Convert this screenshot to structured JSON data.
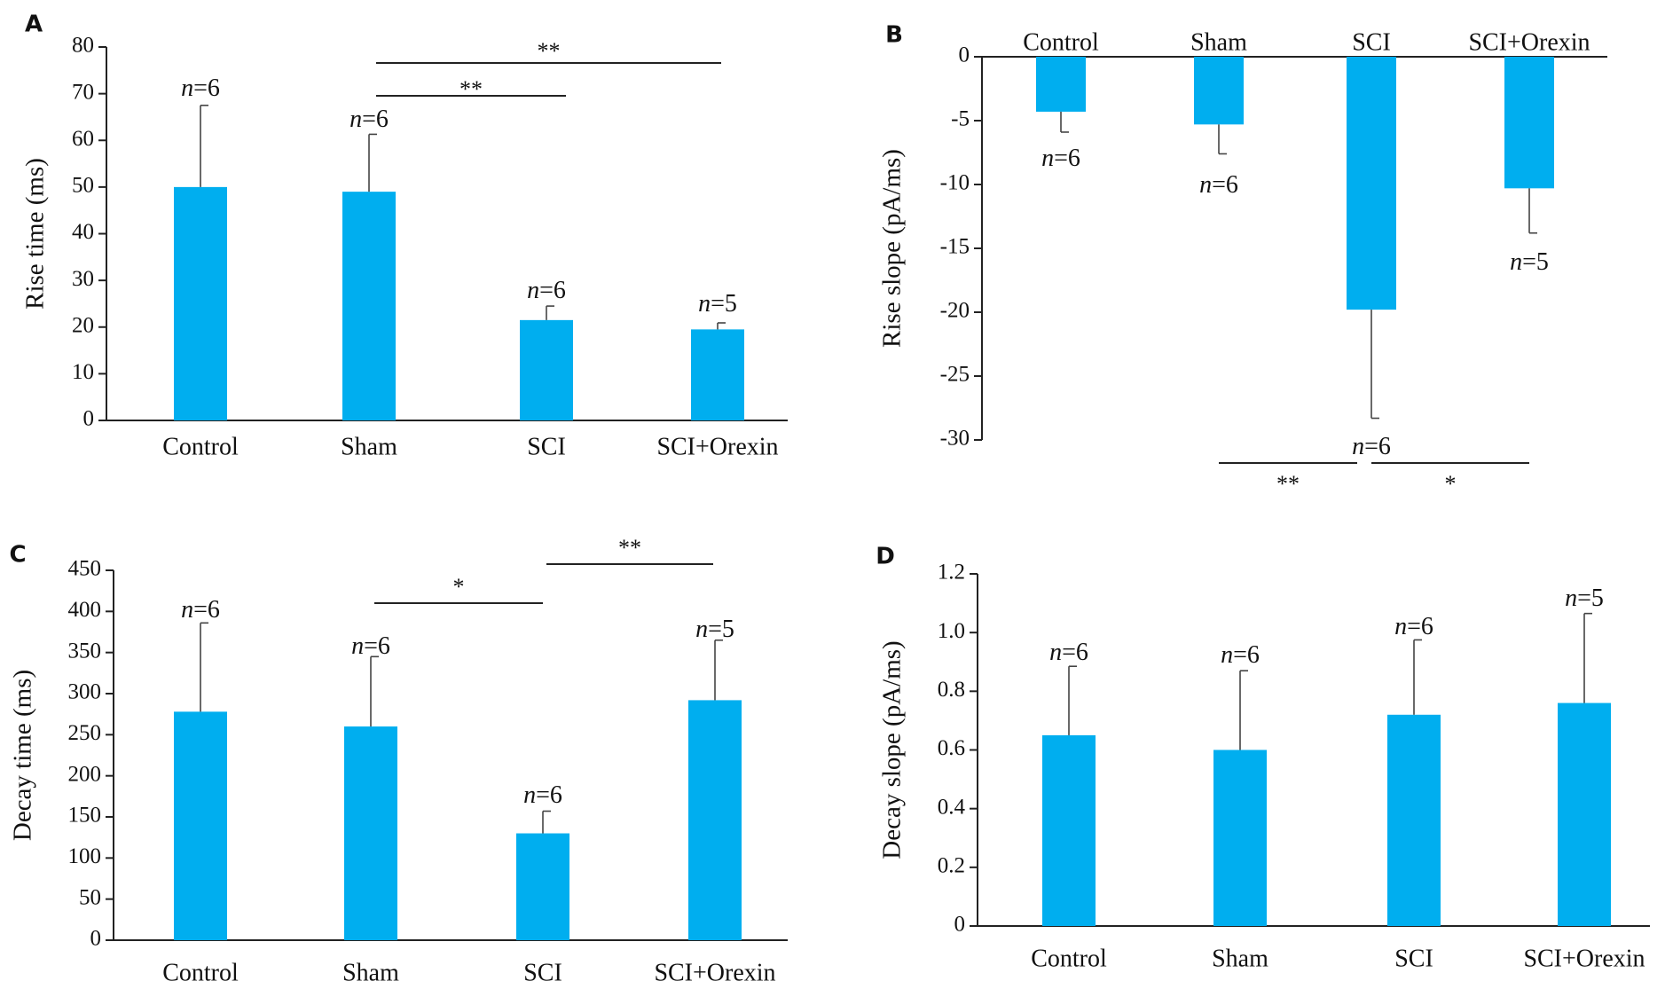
{
  "colors": {
    "bar": "#00AEEF",
    "axis": "#222222",
    "error": "#444444"
  },
  "chart_data": [
    {
      "panel": "A",
      "type": "bar",
      "categories": [
        "Control",
        "Sham",
        "SCI",
        "SCI+Orexin"
      ],
      "values": [
        50,
        49,
        21.5,
        19.5
      ],
      "errors": [
        17.5,
        12.3,
        3.0,
        1.4
      ],
      "n_labels": [
        "=6",
        "=6",
        "=6",
        "=5"
      ],
      "ylabel": "Rise time (ms)",
      "ylim": [
        0,
        80
      ],
      "yticks": [
        0,
        10,
        20,
        30,
        40,
        50,
        60,
        70,
        80
      ],
      "significance": [
        {
          "from": 1,
          "to": 2,
          "label": "**"
        },
        {
          "from": 1,
          "to": 3,
          "label": "**"
        }
      ]
    },
    {
      "panel": "B",
      "type": "bar",
      "categories": [
        "Control",
        "Sham",
        "SCI",
        "SCI+Orexin"
      ],
      "values": [
        -4.3,
        -5.3,
        -19.8,
        -10.3
      ],
      "errors": [
        1.6,
        2.3,
        8.5,
        3.5
      ],
      "n_labels": [
        "=6",
        "=6",
        "=6",
        "=5"
      ],
      "ylabel": "Rise slope (pA/ms)",
      "ylim": [
        -30,
        0
      ],
      "yticks": [
        0,
        -5,
        -10,
        -15,
        -20,
        -25,
        -30
      ],
      "significance": [
        {
          "from": 1,
          "to": 2,
          "label": "**"
        },
        {
          "from": 2,
          "to": 3,
          "label": "*"
        }
      ]
    },
    {
      "panel": "C",
      "type": "bar",
      "categories": [
        "Control",
        "Sham",
        "SCI",
        "SCI+Orexin"
      ],
      "values": [
        278,
        260,
        130,
        292
      ],
      "errors": [
        108,
        85,
        27,
        73
      ],
      "n_labels": [
        "=6",
        "=6",
        "=6",
        "=5"
      ],
      "ylabel": "Decay time (ms)",
      "ylim": [
        0,
        450
      ],
      "yticks": [
        0,
        50,
        100,
        150,
        200,
        250,
        300,
        350,
        400,
        450
      ],
      "significance": [
        {
          "from": 1,
          "to": 2,
          "label": "*"
        },
        {
          "from": 2,
          "to": 3,
          "label": "**"
        }
      ]
    },
    {
      "panel": "D",
      "type": "bar",
      "categories": [
        "Control",
        "Sham",
        "SCI",
        "SCI+Orexin"
      ],
      "values": [
        0.65,
        0.6,
        0.72,
        0.76
      ],
      "errors": [
        0.235,
        0.27,
        0.255,
        0.305
      ],
      "n_labels": [
        "=6",
        "=6",
        "=6",
        "=5"
      ],
      "ylabel": "Decay slope (pA/ms)",
      "ylim": [
        0,
        1.2
      ],
      "yticks": [
        "0",
        "0.2",
        "0.4",
        "0.6",
        "0.8",
        "1.0",
        "1.2"
      ],
      "significance": []
    }
  ]
}
